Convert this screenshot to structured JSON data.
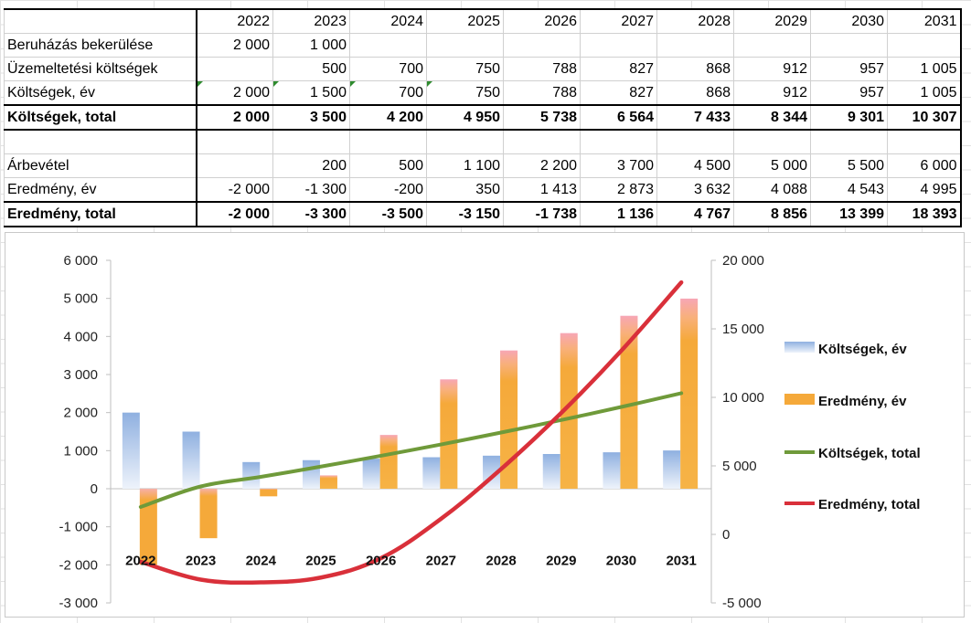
{
  "table": {
    "years": [
      "2022",
      "2023",
      "2024",
      "2025",
      "2026",
      "2027",
      "2028",
      "2029",
      "2030",
      "2031"
    ],
    "rows": [
      {
        "label": "Beruházás bekerülése",
        "values": [
          "2 000",
          "1 000",
          "",
          "",
          "",
          "",
          "",
          "",
          "",
          ""
        ],
        "bold": false
      },
      {
        "label": "Üzemeltetési költségek",
        "values": [
          "",
          "500",
          "700",
          "750",
          "788",
          "827",
          "868",
          "912",
          "957",
          "1 005"
        ],
        "bold": false
      },
      {
        "label": "Költségek, év",
        "values": [
          "2 000",
          "1 500",
          "700",
          "750",
          "788",
          "827",
          "868",
          "912",
          "957",
          "1 005"
        ],
        "bold": false
      },
      {
        "label": "Költségek, total",
        "values": [
          "2 000",
          "3 500",
          "4 200",
          "4 950",
          "5 738",
          "6 564",
          "7 433",
          "8 344",
          "9 301",
          "10 307"
        ],
        "bold": true
      },
      {
        "label": "",
        "values": [
          "",
          "",
          "",
          "",
          "",
          "",
          "",
          "",
          "",
          ""
        ],
        "bold": false
      },
      {
        "label": "Árbevétel",
        "values": [
          "",
          "200",
          "500",
          "1 100",
          "2 200",
          "3 700",
          "4 500",
          "5 000",
          "5 500",
          "6 000"
        ],
        "bold": false
      },
      {
        "label": "Eredmény, év",
        "values": [
          "-2 000",
          "-1 300",
          "-200",
          "350",
          "1 413",
          "2 873",
          "3 632",
          "4 088",
          "4 543",
          "4 995"
        ],
        "bold": false
      },
      {
        "label": "Eredmény, total",
        "values": [
          "-2 000",
          "-3 300",
          "-3 500",
          "-3 150",
          "-1 738",
          "1 136",
          "4 767",
          "8 856",
          "13 399",
          "18 393"
        ],
        "bold": true
      }
    ]
  },
  "chart_data": {
    "type": "bar",
    "categories": [
      "2022",
      "2023",
      "2024",
      "2025",
      "2026",
      "2027",
      "2028",
      "2029",
      "2030",
      "2031"
    ],
    "series": [
      {
        "name": "Költségek, év",
        "kind": "bar",
        "axis": "left",
        "color": "#8fb0e0",
        "values": [
          2000,
          1500,
          700,
          750,
          788,
          827,
          868,
          912,
          957,
          1005
        ]
      },
      {
        "name": "Eredmény, év",
        "kind": "bar",
        "axis": "left",
        "color": "#f5a93a",
        "values": [
          -2000,
          -1300,
          -200,
          350,
          1413,
          2873,
          3632,
          4088,
          4543,
          4995
        ]
      },
      {
        "name": "Költségek, total",
        "kind": "line",
        "axis": "right",
        "color": "#6f9a3a",
        "values": [
          2000,
          3500,
          4200,
          4950,
          5738,
          6564,
          7433,
          8344,
          9301,
          10307
        ]
      },
      {
        "name": "Eredmény, total",
        "kind": "line",
        "axis": "right",
        "color": "#d9303a",
        "values": [
          -2000,
          -3300,
          -3500,
          -3150,
          -1738,
          1136,
          4767,
          8856,
          13399,
          18393
        ]
      }
    ],
    "y_left": {
      "min": -3000,
      "max": 6000,
      "step": 1000,
      "tick_labels": [
        "-3 000",
        "-2 000",
        "-1 000",
        "0",
        "1 000",
        "2 000",
        "3 000",
        "4 000",
        "5 000",
        "6 000"
      ]
    },
    "y_right": {
      "min": -5000,
      "max": 20000,
      "step": 5000,
      "tick_labels": [
        "-5 000",
        "0",
        "5 000",
        "10 000",
        "15 000",
        "20 000"
      ]
    },
    "legend_position": "right",
    "grid": false
  }
}
